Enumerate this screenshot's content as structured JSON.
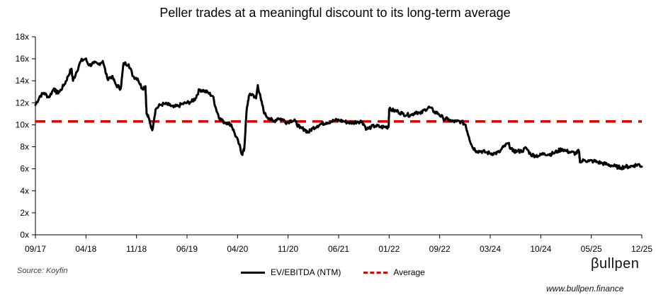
{
  "chart_data": {
    "type": "line",
    "title": "Peller trades at a meaningful discount to its long-term average",
    "xlabel": "",
    "ylabel": "",
    "ylim": [
      0,
      18
    ],
    "y_ticks": [
      "0x",
      "2x",
      "4x",
      "6x",
      "8x",
      "10x",
      "12x",
      "14x",
      "16x",
      "18x"
    ],
    "x_ticks": [
      "09/17",
      "04/18",
      "11/18",
      "06/19",
      "04/20",
      "11/20",
      "06/21",
      "01/22",
      "09/22",
      "03/24",
      "10/24",
      "05/25",
      "12/25"
    ],
    "legend_position": "bottom-center",
    "series": [
      {
        "name": "EV/EBITDA (NTM)",
        "color": "#000000",
        "style": "solid",
        "points": [
          [
            0,
            11.8
          ],
          [
            0.8,
            12.6
          ],
          [
            1.5,
            12.9
          ],
          [
            2.4,
            12.5
          ],
          [
            3.3,
            13.3
          ],
          [
            3.8,
            12.9
          ],
          [
            4.3,
            13.0
          ],
          [
            5.2,
            13.7
          ],
          [
            5.8,
            14.4
          ],
          [
            6.4,
            15.1
          ],
          [
            6.7,
            14.0
          ],
          [
            7.3,
            14.8
          ],
          [
            8.1,
            15.8
          ],
          [
            8.9,
            16.0
          ],
          [
            9.6,
            15.4
          ],
          [
            10.4,
            15.6
          ],
          [
            11.2,
            15.5
          ],
          [
            12.0,
            15.8
          ],
          [
            12.8,
            14.2
          ],
          [
            13.6,
            14.4
          ],
          [
            14.4,
            13.6
          ],
          [
            15.2,
            13.3
          ],
          [
            15.7,
            15.6
          ],
          [
            16.6,
            15.5
          ],
          [
            17.4,
            14.4
          ],
          [
            18.2,
            14.2
          ],
          [
            19.0,
            13.3
          ],
          [
            19.6,
            13.5
          ],
          [
            19.8,
            11.0
          ],
          [
            20.2,
            10.6
          ],
          [
            20.8,
            9.5
          ],
          [
            21.4,
            11.4
          ],
          [
            22.2,
            11.8
          ],
          [
            23.0,
            11.9
          ],
          [
            23.8,
            11.8
          ],
          [
            24.6,
            11.6
          ],
          [
            25.4,
            11.7
          ],
          [
            26.2,
            11.9
          ],
          [
            27.0,
            12.0
          ],
          [
            27.8,
            12.1
          ],
          [
            28.5,
            12.4
          ],
          [
            29.2,
            13.2
          ],
          [
            30.0,
            13.1
          ],
          [
            30.8,
            12.9
          ],
          [
            31.6,
            12.6
          ],
          [
            32.2,
            11.4
          ],
          [
            32.8,
            10.6
          ],
          [
            33.4,
            10.3
          ],
          [
            34.2,
            10.2
          ],
          [
            34.9,
            10.0
          ],
          [
            35.5,
            9.2
          ],
          [
            36.3,
            8.2
          ],
          [
            36.8,
            7.3
          ],
          [
            37.2,
            7.8
          ],
          [
            37.6,
            11.2
          ],
          [
            38.0,
            12.6
          ],
          [
            38.6,
            12.8
          ],
          [
            39.3,
            12.4
          ],
          [
            39.6,
            13.6
          ],
          [
            40.2,
            12.2
          ],
          [
            40.8,
            11.0
          ],
          [
            41.6,
            10.6
          ],
          [
            42.4,
            10.3
          ],
          [
            43.2,
            10.6
          ],
          [
            44.0,
            10.5
          ],
          [
            44.8,
            10.2
          ],
          [
            45.5,
            10.4
          ],
          [
            46.3,
            10.3
          ],
          [
            47.1,
            9.7
          ],
          [
            47.9,
            9.6
          ],
          [
            48.6,
            9.3
          ],
          [
            49.4,
            9.7
          ],
          [
            50.2,
            9.9
          ],
          [
            51.0,
            10.1
          ],
          [
            51.8,
            10.2
          ],
          [
            52.6,
            10.3
          ],
          [
            53.4,
            10.4
          ],
          [
            54.2,
            10.4
          ],
          [
            55.0,
            10.3
          ],
          [
            55.8,
            10.2
          ],
          [
            56.6,
            10.2
          ],
          [
            57.4,
            10.3
          ],
          [
            58.2,
            10.3
          ],
          [
            59.0,
            9.6
          ],
          [
            59.8,
            9.8
          ],
          [
            60.6,
            9.9
          ],
          [
            61.4,
            9.8
          ],
          [
            62.2,
            9.8
          ],
          [
            62.9,
            9.8
          ],
          [
            63.0,
            11.4
          ],
          [
            63.8,
            11.3
          ],
          [
            64.6,
            11.2
          ],
          [
            65.4,
            11.0
          ],
          [
            66.2,
            10.9
          ],
          [
            67.0,
            10.9
          ],
          [
            67.8,
            11.2
          ],
          [
            68.6,
            11.0
          ],
          [
            69.4,
            11.4
          ],
          [
            70.2,
            11.6
          ],
          [
            71.0,
            11.2
          ],
          [
            71.8,
            11.0
          ],
          [
            72.6,
            10.6
          ],
          [
            73.4,
            10.5
          ],
          [
            74.2,
            10.3
          ],
          [
            75.0,
            10.3
          ],
          [
            75.8,
            10.3
          ],
          [
            76.6,
            10.0
          ],
          [
            77.2,
            8.9
          ],
          [
            77.8,
            8.0
          ],
          [
            78.6,
            7.6
          ],
          [
            79.4,
            7.6
          ],
          [
            80.2,
            7.5
          ],
          [
            81.0,
            7.4
          ],
          [
            81.8,
            7.4
          ],
          [
            82.6,
            7.5
          ],
          [
            83.4,
            8.0
          ],
          [
            84.2,
            8.3
          ],
          [
            85.0,
            7.6
          ],
          [
            85.8,
            7.6
          ],
          [
            86.6,
            7.6
          ],
          [
            87.4,
            7.9
          ],
          [
            88.2,
            7.3
          ],
          [
            89.0,
            7.2
          ],
          [
            89.8,
            7.2
          ],
          [
            90.6,
            7.4
          ],
          [
            91.4,
            7.3
          ],
          [
            92.2,
            7.4
          ],
          [
            93.0,
            7.6
          ],
          [
            93.8,
            7.8
          ],
          [
            94.6,
            7.6
          ],
          [
            95.4,
            7.5
          ],
          [
            96.2,
            7.4
          ],
          [
            96.8,
            7.6
          ],
          [
            97.0,
            6.6
          ],
          [
            97.8,
            6.8
          ],
          [
            98.6,
            6.7
          ],
          [
            99.4,
            6.7
          ],
          [
            100.2,
            6.6
          ],
          [
            101.0,
            6.5
          ],
          [
            101.8,
            6.4
          ],
          [
            102.6,
            6.3
          ],
          [
            103.4,
            6.2
          ],
          [
            104.2,
            6.1
          ],
          [
            105.0,
            6.2
          ],
          [
            105.8,
            6.2
          ],
          [
            106.6,
            6.3
          ],
          [
            107.4,
            6.4
          ],
          [
            108.0,
            6.2
          ]
        ]
      },
      {
        "name": "Average",
        "color": "#e00000",
        "style": "dashed",
        "constant": 10.3
      }
    ]
  },
  "footer": {
    "source": "Source: Koyfin",
    "legend_line": "EV/EBITDA (NTM)",
    "legend_avg": "Average",
    "brand": "βullpen",
    "site": "www.bullpen.finance"
  }
}
